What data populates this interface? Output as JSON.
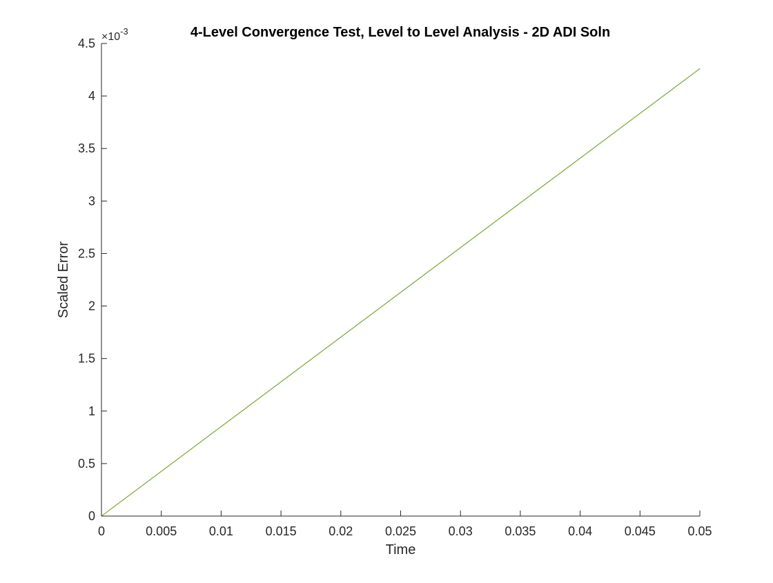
{
  "chart_data": {
    "type": "line",
    "title": "4-Level Convergence Test, Level to Level Analysis - 2D ADI Soln",
    "xlabel": "Time",
    "ylabel": "Scaled Error",
    "xlim": [
      0,
      0.05
    ],
    "ylim": [
      0,
      0.0045
    ],
    "x_ticks": [
      0,
      0.005,
      0.01,
      0.015,
      0.02,
      0.025,
      0.03,
      0.035,
      0.04,
      0.045,
      0.05
    ],
    "x_tick_labels": [
      "0",
      "0.005",
      "0.01",
      "0.015",
      "0.02",
      "0.025",
      "0.03",
      "0.035",
      "0.04",
      "0.045",
      "0.05"
    ],
    "y_ticks": [
      0,
      0.0005,
      0.001,
      0.0015,
      0.002,
      0.0025,
      0.003,
      0.0035,
      0.004,
      0.0045
    ],
    "y_tick_labels": [
      "0",
      "0.5",
      "1",
      "1.5",
      "2",
      "2.5",
      "3",
      "3.5",
      "4",
      "4.5"
    ],
    "y_exponent_base": "×10",
    "y_exponent_power": "-3",
    "grid": false,
    "series": [
      {
        "color": "#0072BD",
        "x": [
          0,
          0.05
        ],
        "y": [
          0,
          0.00426
        ]
      },
      {
        "color": "#EDB120",
        "x": [
          0,
          0.05
        ],
        "y": [
          0,
          0.00426
        ]
      },
      {
        "color": "#77AC30",
        "x": [
          0,
          0.05
        ],
        "y": [
          0,
          0.00426
        ]
      }
    ]
  }
}
